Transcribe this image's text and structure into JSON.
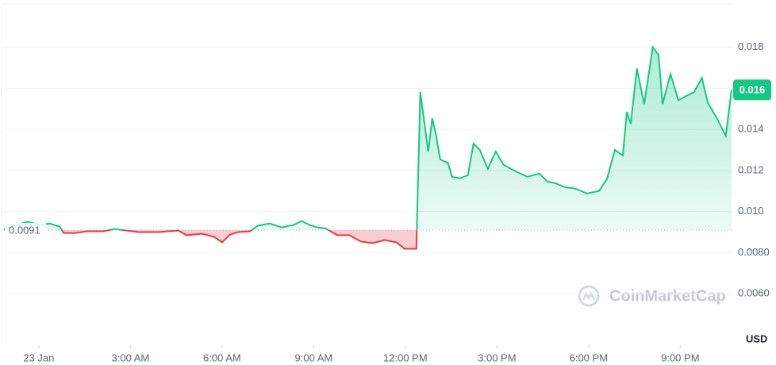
{
  "chart_data": {
    "type": "line",
    "x": [
      -1.14,
      -0.75,
      -0.36,
      0.03,
      0.34,
      0.68,
      0.81,
      1.19,
      1.58,
      2.1,
      2.49,
      2.88,
      3.27,
      3.92,
      4.57,
      4.83,
      5.35,
      5.74,
      6.0,
      6.26,
      6.52,
      6.91,
      7.17,
      7.56,
      7.95,
      8.34,
      8.6,
      8.86,
      9.12,
      9.38,
      9.77,
      10.16,
      10.55,
      10.94,
      11.32,
      11.71,
      11.97,
      12.36,
      12.49,
      12.75,
      12.88,
      13.01,
      13.14,
      13.4,
      13.53,
      13.79,
      14.05,
      14.23,
      14.44,
      14.7,
      14.96,
      15.22,
      15.61,
      16.0,
      16.39,
      16.65,
      16.91,
      17.22,
      17.56,
      17.95,
      18.34,
      18.6,
      18.86,
      19.12,
      19.25,
      19.38,
      19.58,
      19.82,
      20.1,
      20.29,
      20.42,
      20.68,
      20.94,
      21.19,
      21.45,
      21.71,
      21.9,
      22.23,
      22.49,
      22.68
    ],
    "values": [
      0.00912,
      0.00935,
      0.0095,
      0.00935,
      0.00942,
      0.00927,
      0.00896,
      0.00896,
      0.00904,
      0.00904,
      0.00915,
      0.00908,
      0.009,
      0.009,
      0.00908,
      0.00885,
      0.00892,
      0.00877,
      0.0085,
      0.00888,
      0.009,
      0.00904,
      0.00931,
      0.00942,
      0.00923,
      0.00935,
      0.00954,
      0.00935,
      0.00923,
      0.00919,
      0.00885,
      0.00885,
      0.00854,
      0.00846,
      0.00862,
      0.0085,
      0.00819,
      0.00819,
      0.01581,
      0.01292,
      0.01454,
      0.01369,
      0.01254,
      0.01235,
      0.01169,
      0.01162,
      0.01177,
      0.01331,
      0.013,
      0.01208,
      0.01292,
      0.01227,
      0.01196,
      0.01169,
      0.01185,
      0.01146,
      0.01138,
      0.01119,
      0.01112,
      0.01088,
      0.011,
      0.01158,
      0.013,
      0.01273,
      0.01485,
      0.01427,
      0.01696,
      0.01523,
      0.018,
      0.01762,
      0.01523,
      0.01669,
      0.01542,
      0.01562,
      0.01581,
      0.0165,
      0.01531,
      0.01446,
      0.01369,
      0.01592
    ],
    "last_value_label": "0.016",
    "up_color": "#16c784",
    "down_color": "#ea3943",
    "baseline": {
      "value": 0.0091,
      "label": "0.0091"
    },
    "xlim": [
      -1.14,
      22.68
    ],
    "xticks": [
      {
        "value": 0,
        "label": "23 Jan"
      },
      {
        "value": 3,
        "label": "3:00 AM"
      },
      {
        "value": 6,
        "label": "6:00 AM"
      },
      {
        "value": 9,
        "label": "9:00 AM"
      },
      {
        "value": 12,
        "label": "12:00 PM"
      },
      {
        "value": 15,
        "label": "3:00 PM"
      },
      {
        "value": 18,
        "label": "6:00 PM"
      },
      {
        "value": 21,
        "label": "9:00 PM"
      }
    ],
    "ylim": [
      0.0035,
      0.0201
    ],
    "yticks": [
      {
        "value": 0.006,
        "label": "0.0060"
      },
      {
        "value": 0.008,
        "label": "0.0080"
      },
      {
        "value": 0.01,
        "label": "0.010"
      },
      0.012,
      0.014,
      0.016,
      0.018
    ],
    "y_axis_unit": "USD",
    "watermark": "CoinMarketCap",
    "grid": true
  }
}
